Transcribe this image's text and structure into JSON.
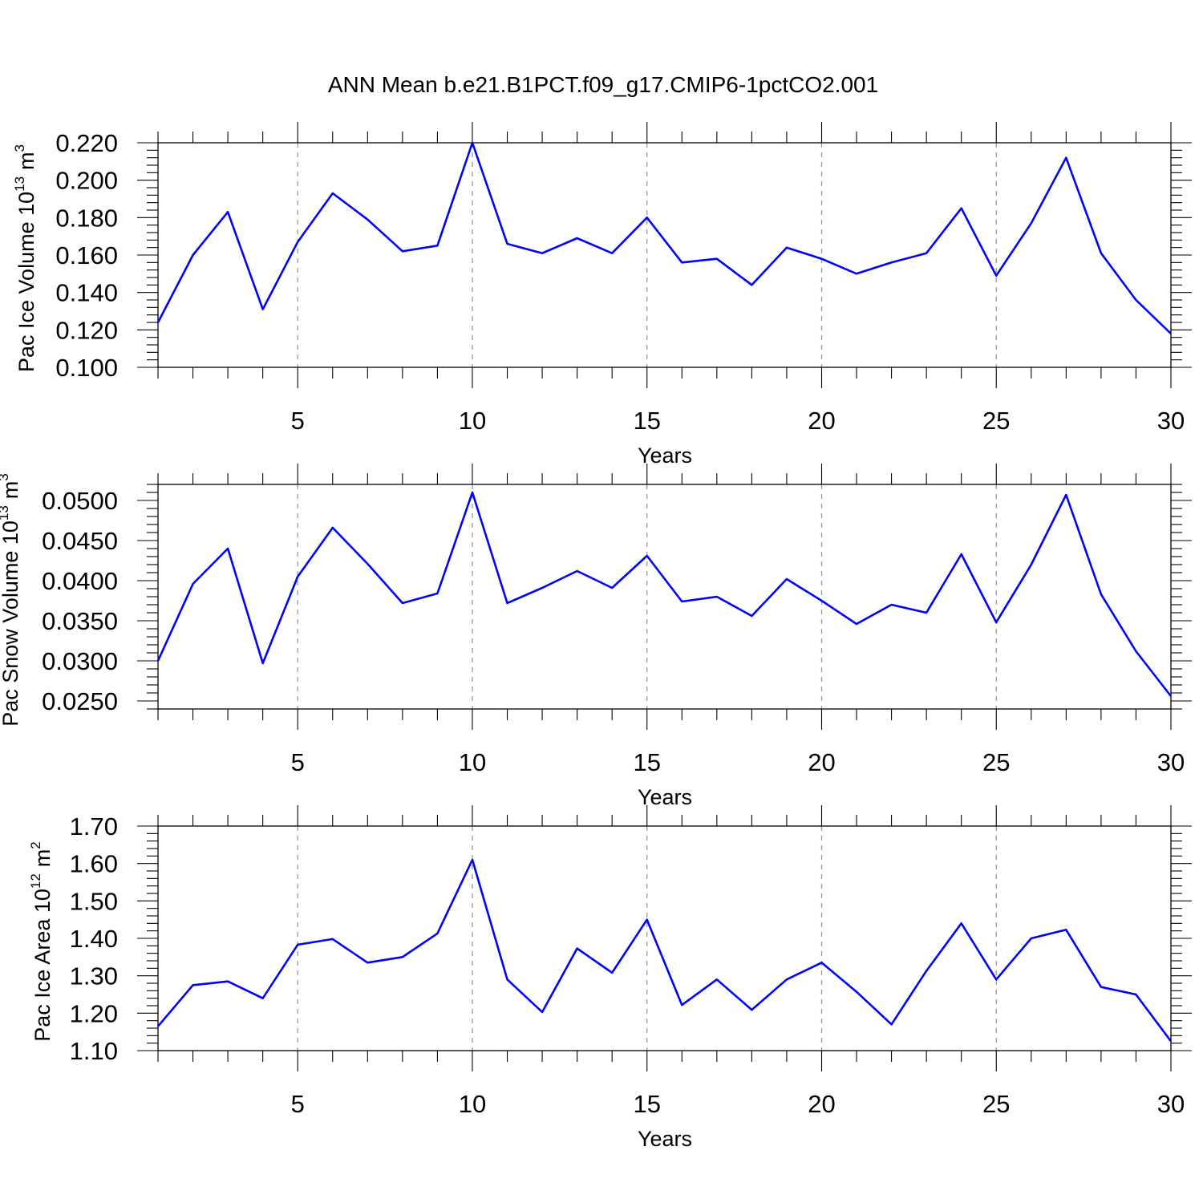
{
  "title": "ANN Mean b.e21.B1PCT.f09_g17.CMIP6-1pctCO2.001",
  "colors": {
    "series": "#0000ff",
    "axis": "#000000",
    "grid": "#999999"
  },
  "chart_data": [
    {
      "type": "line",
      "ylabel_main": "Pac Ice Volume 10",
      "ylabel_exp": "13",
      "ylabel_unit": "m",
      "ylabel_unit_exp": "3",
      "xlabel": "Years",
      "xlim": [
        1,
        30
      ],
      "ylim": [
        0.1,
        0.22
      ],
      "x_ticks": [
        5,
        10,
        15,
        20,
        25,
        30
      ],
      "y_ticks": [
        0.1,
        0.12,
        0.14,
        0.16,
        0.18,
        0.2,
        0.22
      ],
      "y_tick_labels": [
        "0.100",
        "0.120",
        "0.140",
        "0.160",
        "0.180",
        "0.200",
        "0.220"
      ],
      "grid": "vertical dashed at major x ticks",
      "x": [
        1,
        2,
        3,
        4,
        5,
        6,
        7,
        8,
        9,
        10,
        11,
        12,
        13,
        14,
        15,
        16,
        17,
        18,
        19,
        20,
        21,
        22,
        23,
        24,
        25,
        26,
        27,
        28,
        29,
        30
      ],
      "y": [
        0.124,
        0.16,
        0.183,
        0.131,
        0.167,
        0.193,
        0.179,
        0.162,
        0.165,
        0.22,
        0.166,
        0.161,
        0.169,
        0.161,
        0.18,
        0.156,
        0.158,
        0.144,
        0.164,
        0.158,
        0.15,
        0.156,
        0.161,
        0.185,
        0.149,
        0.177,
        0.212,
        0.161,
        0.136,
        0.118
      ]
    },
    {
      "type": "line",
      "ylabel_main": "Pac Snow Volume 10",
      "ylabel_exp": "13",
      "ylabel_unit": "m",
      "ylabel_unit_exp": "3",
      "xlabel": "Years",
      "xlim": [
        1,
        30
      ],
      "ylim": [
        0.024,
        0.052
      ],
      "x_ticks": [
        5,
        10,
        15,
        20,
        25,
        30
      ],
      "y_ticks": [
        0.025,
        0.03,
        0.035,
        0.04,
        0.045,
        0.05
      ],
      "y_tick_labels": [
        "0.0250",
        "0.0300",
        "0.0350",
        "0.0400",
        "0.0450",
        "0.0500"
      ],
      "grid": "vertical dashed at major x ticks",
      "x": [
        1,
        2,
        3,
        4,
        5,
        6,
        7,
        8,
        9,
        10,
        11,
        12,
        13,
        14,
        15,
        16,
        17,
        18,
        19,
        20,
        21,
        22,
        23,
        24,
        25,
        26,
        27,
        28,
        29,
        30
      ],
      "y": [
        0.03,
        0.0396,
        0.044,
        0.0297,
        0.0405,
        0.0466,
        0.0421,
        0.0372,
        0.0384,
        0.051,
        0.0372,
        0.0391,
        0.0412,
        0.0391,
        0.0431,
        0.0374,
        0.038,
        0.0356,
        0.0402,
        0.0375,
        0.0346,
        0.037,
        0.036,
        0.0433,
        0.0348,
        0.042,
        0.0507,
        0.0383,
        0.0312,
        0.0256
      ]
    },
    {
      "type": "line",
      "ylabel_main": "Pac Ice Area 10",
      "ylabel_exp": "12",
      "ylabel_unit": "m",
      "ylabel_unit_exp": "2",
      "xlabel": "Years",
      "xlim": [
        1,
        30
      ],
      "ylim": [
        1.1,
        1.7
      ],
      "x_ticks": [
        5,
        10,
        15,
        20,
        25,
        30
      ],
      "y_ticks": [
        1.1,
        1.2,
        1.3,
        1.4,
        1.5,
        1.6,
        1.7
      ],
      "y_tick_labels": [
        "1.10",
        "1.20",
        "1.30",
        "1.40",
        "1.50",
        "1.60",
        "1.70"
      ],
      "grid": "vertical dashed at major x ticks",
      "x": [
        1,
        2,
        3,
        4,
        5,
        6,
        7,
        8,
        9,
        10,
        11,
        12,
        13,
        14,
        15,
        16,
        17,
        18,
        19,
        20,
        21,
        22,
        23,
        24,
        25,
        26,
        27,
        28,
        29,
        30
      ],
      "y": [
        1.165,
        1.275,
        1.285,
        1.24,
        1.383,
        1.398,
        1.335,
        1.35,
        1.413,
        1.61,
        1.29,
        1.203,
        1.373,
        1.308,
        1.45,
        1.222,
        1.29,
        1.209,
        1.29,
        1.335,
        1.257,
        1.17,
        1.313,
        1.44,
        1.29,
        1.4,
        1.423,
        1.27,
        1.25,
        1.125
      ]
    }
  ]
}
